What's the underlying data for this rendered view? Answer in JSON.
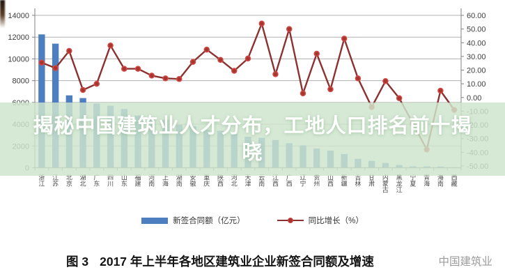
{
  "overlay": {
    "headline_line1": "揭秘中国建筑业人才分布，工地人口排名前十揭",
    "headline_line2": "晓",
    "band_color": "#cee5cd"
  },
  "caption": {
    "figure_label": "图 3",
    "text": "2017 年上半年各地区建筑业企业新签合同额及增速",
    "watermark": "中国建筑业"
  },
  "legend": [
    {
      "label": "新签合同额（亿元）",
      "swatch": "bar",
      "color": "#4d7ebf"
    },
    {
      "label": "同比增长（%）",
      "swatch": "line",
      "color": "#8b3230"
    }
  ],
  "chart_data": {
    "type": "bar",
    "subtype": "bar+line-combo",
    "grid": true,
    "legend_position": "bottom",
    "categories": [
      "浙江",
      "江苏",
      "北京",
      "湖北",
      "广东",
      "四川",
      "山东",
      "福建",
      "河南",
      "上海",
      "湖南",
      "安徽",
      "重庆",
      "陕西",
      "河北",
      "天津",
      "云南",
      "江西",
      "广西",
      "辽宁",
      "贵州",
      "山西",
      "新疆",
      "吉林",
      "甘肃",
      "内蒙古",
      "黑龙江",
      "宁夏",
      "青海",
      "海南",
      "西藏"
    ],
    "series": [
      {
        "name": "新签合同额（亿元）",
        "type": "bar",
        "axis": "left",
        "color": "#4d7ebf",
        "values": [
          12250,
          11400,
          6650,
          6400,
          5900,
          5700,
          5400,
          4800,
          4650,
          4400,
          3950,
          3800,
          3500,
          3400,
          3100,
          2850,
          2750,
          2550,
          2250,
          2050,
          1760,
          1580,
          1260,
          820,
          630,
          440,
          250,
          130,
          120,
          110,
          50
        ]
      },
      {
        "name": "同比增长（%）",
        "type": "line",
        "axis": "right",
        "color": "#8b3230",
        "marker_fill": "#a93531",
        "marker_stroke": "#d24a44",
        "values": [
          25.5,
          21.5,
          34,
          5.5,
          10,
          38,
          21,
          21,
          16,
          14,
          13.5,
          26,
          35,
          27.5,
          19.5,
          28.5,
          54,
          17,
          50,
          3,
          32,
          6,
          43,
          14,
          -7,
          12,
          -0.5,
          -19,
          -38,
          5,
          -9
        ]
      }
    ],
    "left_axis": {
      "min": 0,
      "max": 14000,
      "step": 2000,
      "ticks": [
        "14000",
        "12000",
        "10000",
        "8000",
        "6000",
        "4000",
        "2000",
        "0"
      ]
    },
    "right_axis": {
      "min": -50,
      "max": 60,
      "step": 10,
      "ticks": [
        "60.00",
        "50.00",
        "40.00",
        "30.00",
        "20.00",
        "10.00",
        "0.00",
        "-10.00",
        "-20.00",
        "-30.00",
        "-40.00",
        "-50.00"
      ]
    }
  }
}
